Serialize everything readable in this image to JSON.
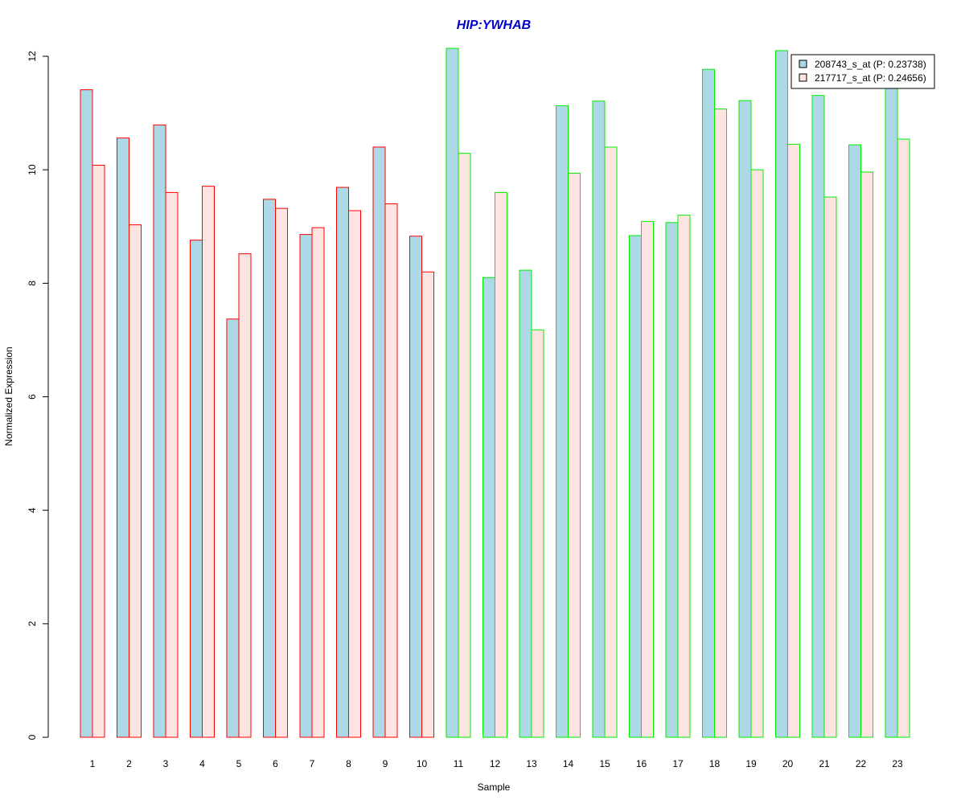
{
  "chart_data": {
    "type": "bar",
    "title": "HIP:YWHAB",
    "xlabel": "Sample",
    "ylabel": "Normalized Expression",
    "ylim": [
      0,
      12
    ],
    "yticks": [
      "0",
      "2",
      "4",
      "6",
      "8",
      "10",
      "12"
    ],
    "categories": [
      "1",
      "2",
      "3",
      "4",
      "5",
      "6",
      "7",
      "8",
      "9",
      "10",
      "11",
      "12",
      "13",
      "14",
      "15",
      "16",
      "17",
      "18",
      "19",
      "20",
      "21",
      "22",
      "23"
    ],
    "series": [
      {
        "name": "208743_s_at (P: 0.23738)",
        "fill": "#add8e6",
        "values": [
          11.41,
          10.56,
          10.79,
          8.76,
          7.37,
          9.48,
          8.86,
          9.69,
          10.4,
          8.83,
          12.14,
          8.1,
          8.23,
          11.13,
          11.21,
          8.84,
          9.07,
          11.77,
          11.22,
          12.1,
          11.31,
          10.44,
          11.5
        ]
      },
      {
        "name": "217717_s_at (P: 0.24656)",
        "fill": "#fde4e0",
        "values": [
          10.08,
          9.03,
          9.6,
          9.71,
          8.52,
          9.32,
          8.98,
          9.28,
          9.4,
          8.2,
          10.29,
          9.6,
          7.18,
          9.94,
          10.4,
          9.09,
          9.2,
          11.07,
          10.0,
          10.45,
          9.52,
          9.96,
          10.54
        ]
      }
    ],
    "group_border_colors": [
      "#ff0000",
      "#ff0000",
      "#ff0000",
      "#ff0000",
      "#ff0000",
      "#ff0000",
      "#ff0000",
      "#ff0000",
      "#ff0000",
      "#ff0000",
      "#00ee00",
      "#00ee00",
      "#00ee00",
      "#00ee00",
      "#00ee00",
      "#00ee00",
      "#00ee00",
      "#00ee00",
      "#00ee00",
      "#00ee00",
      "#00ee00",
      "#00ee00",
      "#00ee00"
    ],
    "title_color": "#0000cc",
    "legend_position": "top-right",
    "grid": false
  }
}
